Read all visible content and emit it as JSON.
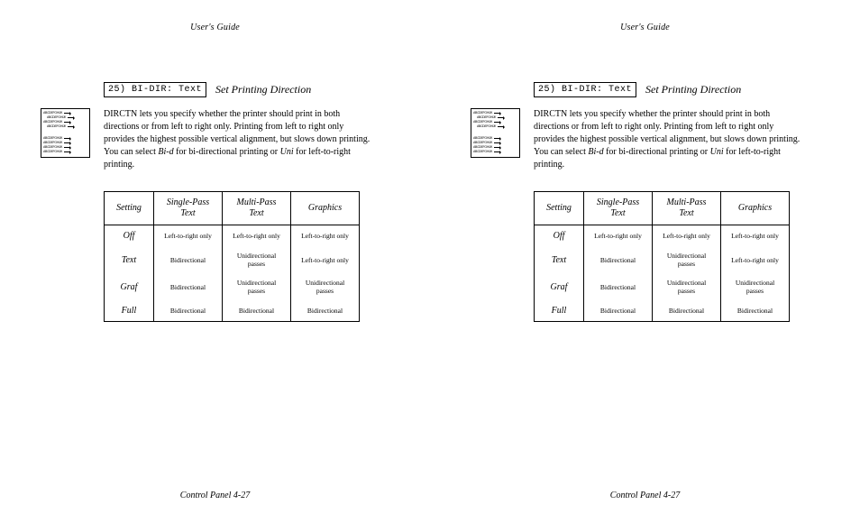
{
  "header": "User's Guide",
  "footer": "Control Panel  4-27",
  "code_label": "25) BI-DIR: Text",
  "section_title": "Set Printing Direction",
  "paragraph": {
    "p1": "DIRCTN lets you specify whether the printer should print in both directions or from left to right only.  Printing from left to right only provides the highest possible vertical alignment, but slows down printing.  You can select ",
    "bi_d": "Bi-d",
    "p2": " for bi-directional printing or ",
    "uni": "Uni",
    "p3": " for left-to-right printing."
  },
  "icon_text": "ABCDEFGHIJK",
  "table": {
    "headers": {
      "setting": "Setting",
      "single": "Single-Pass\nText",
      "multi": "Multi-Pass\nText",
      "graphics": "Graphics"
    },
    "rows": [
      {
        "setting": "Off",
        "single": "Left-to-right only",
        "multi": "Left-to-right only",
        "graphics": "Left-to-right only"
      },
      {
        "setting": "Text",
        "single": "Bidirectional",
        "multi": "Unidirectional passes",
        "graphics": "Left-to-right only"
      },
      {
        "setting": "Graf",
        "single": "Bidirectional",
        "multi": "Unidirectional passes",
        "graphics": "Unidirectional passes"
      },
      {
        "setting": "Full",
        "single": "Bidirectional",
        "multi": "Bidirectional",
        "graphics": "Bidirectional"
      }
    ]
  }
}
